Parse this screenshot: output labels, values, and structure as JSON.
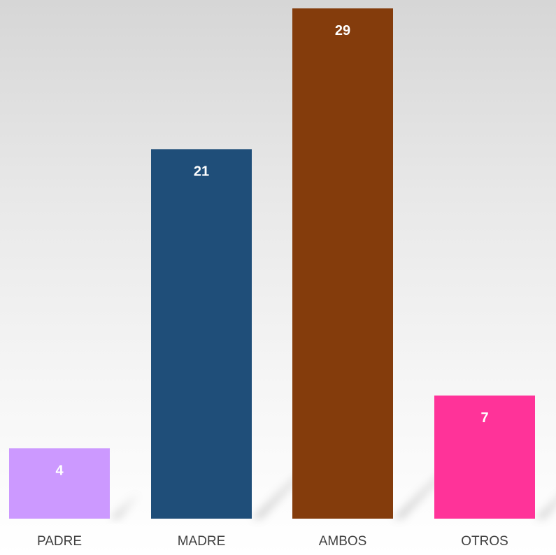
{
  "chart_data": {
    "type": "bar",
    "title": "",
    "xlabel": "",
    "ylabel": "",
    "categories": [
      "PADRE",
      "MADRE",
      "AMBOS",
      "OTROS"
    ],
    "values": [
      4,
      21,
      29,
      7
    ],
    "value_labels": [
      "4",
      "21",
      "29",
      "7"
    ],
    "colors": [
      "#CC99FF",
      "#1F4E79",
      "#843C0C",
      "#FF3399"
    ],
    "ylim": [
      0,
      29
    ],
    "grid": false,
    "legend": "none"
  }
}
